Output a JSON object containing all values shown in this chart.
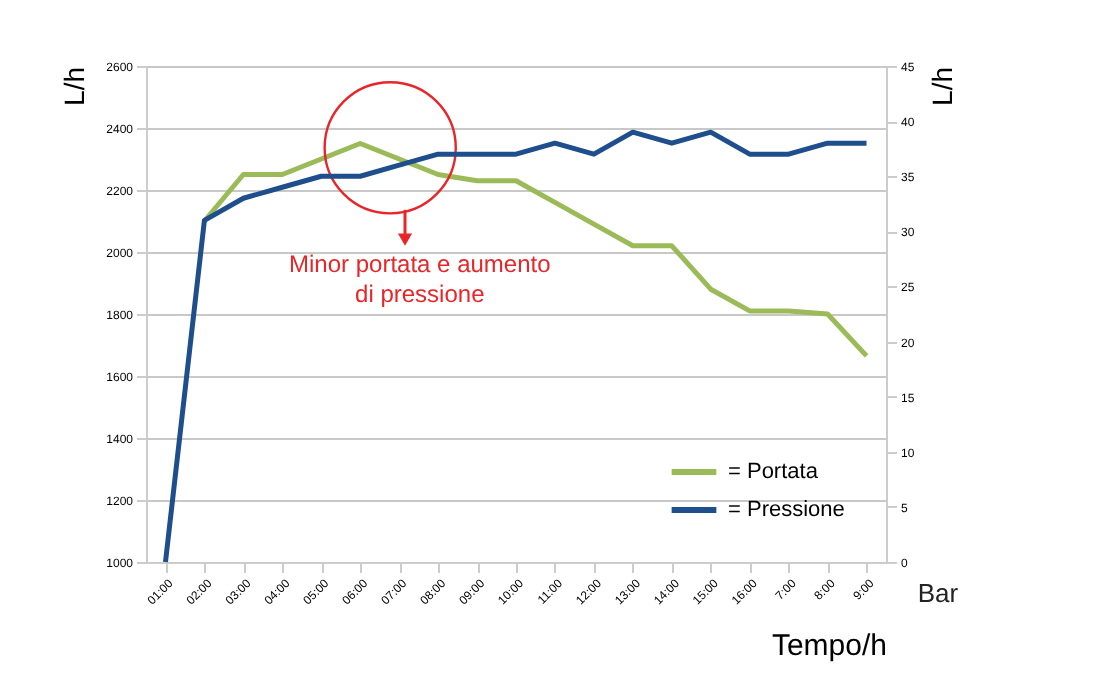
{
  "chart_data": {
    "type": "line",
    "xlabel": "Tempo/h",
    "ylabel": "L/h",
    "y2label": "L/h",
    "categories": [
      "01:00",
      "02:00",
      "03:00",
      "04:00",
      "05:00",
      "06:00",
      "07:00",
      "08:00",
      "09:00",
      "10:00",
      "11:00",
      "12:00",
      "13:00",
      "14:00",
      "15:00",
      "16:00",
      "7:00",
      "8:00",
      "9:00"
    ],
    "series": [
      {
        "name": "= Portata",
        "color": "#9bbb59",
        "values": [
          null,
          2100,
          2250,
          2250,
          2300,
          2350,
          2300,
          2250,
          2230,
          2230,
          2160,
          2090,
          2020,
          2020,
          1880,
          1810,
          1810,
          1800,
          1665
        ]
      },
      {
        "name": "= Pressione",
        "color": "#1f4e8c",
        "axis": "y2",
        "values": [
          0,
          31,
          33,
          34,
          35,
          35,
          36,
          37,
          37,
          37,
          38,
          37,
          39,
          38,
          39,
          37,
          37,
          38,
          38
        ]
      }
    ],
    "ylim": [
      1000,
      2600
    ],
    "yticks": [
      1000,
      1200,
      1400,
      1600,
      1800,
      2000,
      2200,
      2400,
      2600
    ],
    "y2lim": [
      0,
      45
    ],
    "y2ticks": [
      0,
      5,
      10,
      15,
      20,
      25,
      30,
      35,
      40,
      45
    ],
    "annotations": [
      "Minor portata e aumento di pressione",
      "Bar"
    ],
    "grid": "y",
    "legend": "bottom right"
  }
}
